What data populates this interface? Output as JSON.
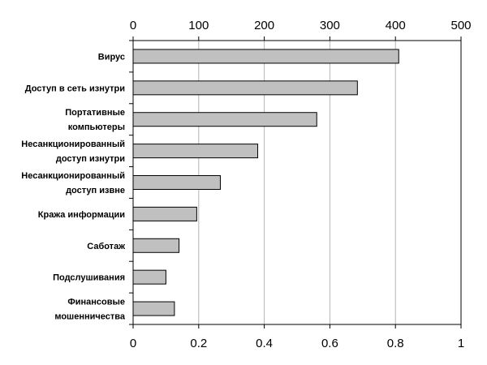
{
  "chart_data": {
    "type": "bar",
    "orientation": "horizontal",
    "categories": [
      "Вирус",
      "Доступ в сеть изнутри",
      "Портативные компьютеры",
      "Несанкционированный доступ изнутри",
      "Несанкционированный доступ извне",
      "Кража информации",
      "Саботаж",
      "Подслушивания",
      "Финансовые мошенничества"
    ],
    "category_lines": [
      [
        "Вирус"
      ],
      [
        "Доступ в сеть изнутри"
      ],
      [
        "Портативные",
        "компьютеры"
      ],
      [
        "Несанкционированный",
        "доступ изнутри"
      ],
      [
        "Несанкционированный",
        "доступ извне"
      ],
      [
        "Кража информации"
      ],
      [
        "Саботаж"
      ],
      [
        "Подслушивания"
      ],
      [
        "Финансовые",
        "мошенничества"
      ]
    ],
    "values": [
      405,
      342,
      280,
      190,
      133,
      97,
      70,
      50,
      63
    ],
    "top_axis": {
      "ticks": [
        0,
        100,
        200,
        300,
        400,
        500
      ],
      "tick_labels": [
        "0",
        "100",
        "200",
        "300",
        "400",
        "500"
      ],
      "range": [
        0,
        500
      ]
    },
    "bottom_axis": {
      "ticks": [
        0,
        0.2,
        0.4,
        0.6,
        0.8,
        1
      ],
      "tick_labels": [
        "0",
        "0.2",
        "0.4",
        "0.6",
        "0.8",
        "1"
      ],
      "range": [
        0,
        1
      ]
    },
    "grid": true,
    "legend": "none",
    "colors": {
      "bar_fill": "#c0c0c0",
      "bar_stroke": "#000000",
      "grid": "#b4b4b4",
      "axis": "#000000"
    },
    "title": "",
    "xlabel": "",
    "ylabel": ""
  }
}
